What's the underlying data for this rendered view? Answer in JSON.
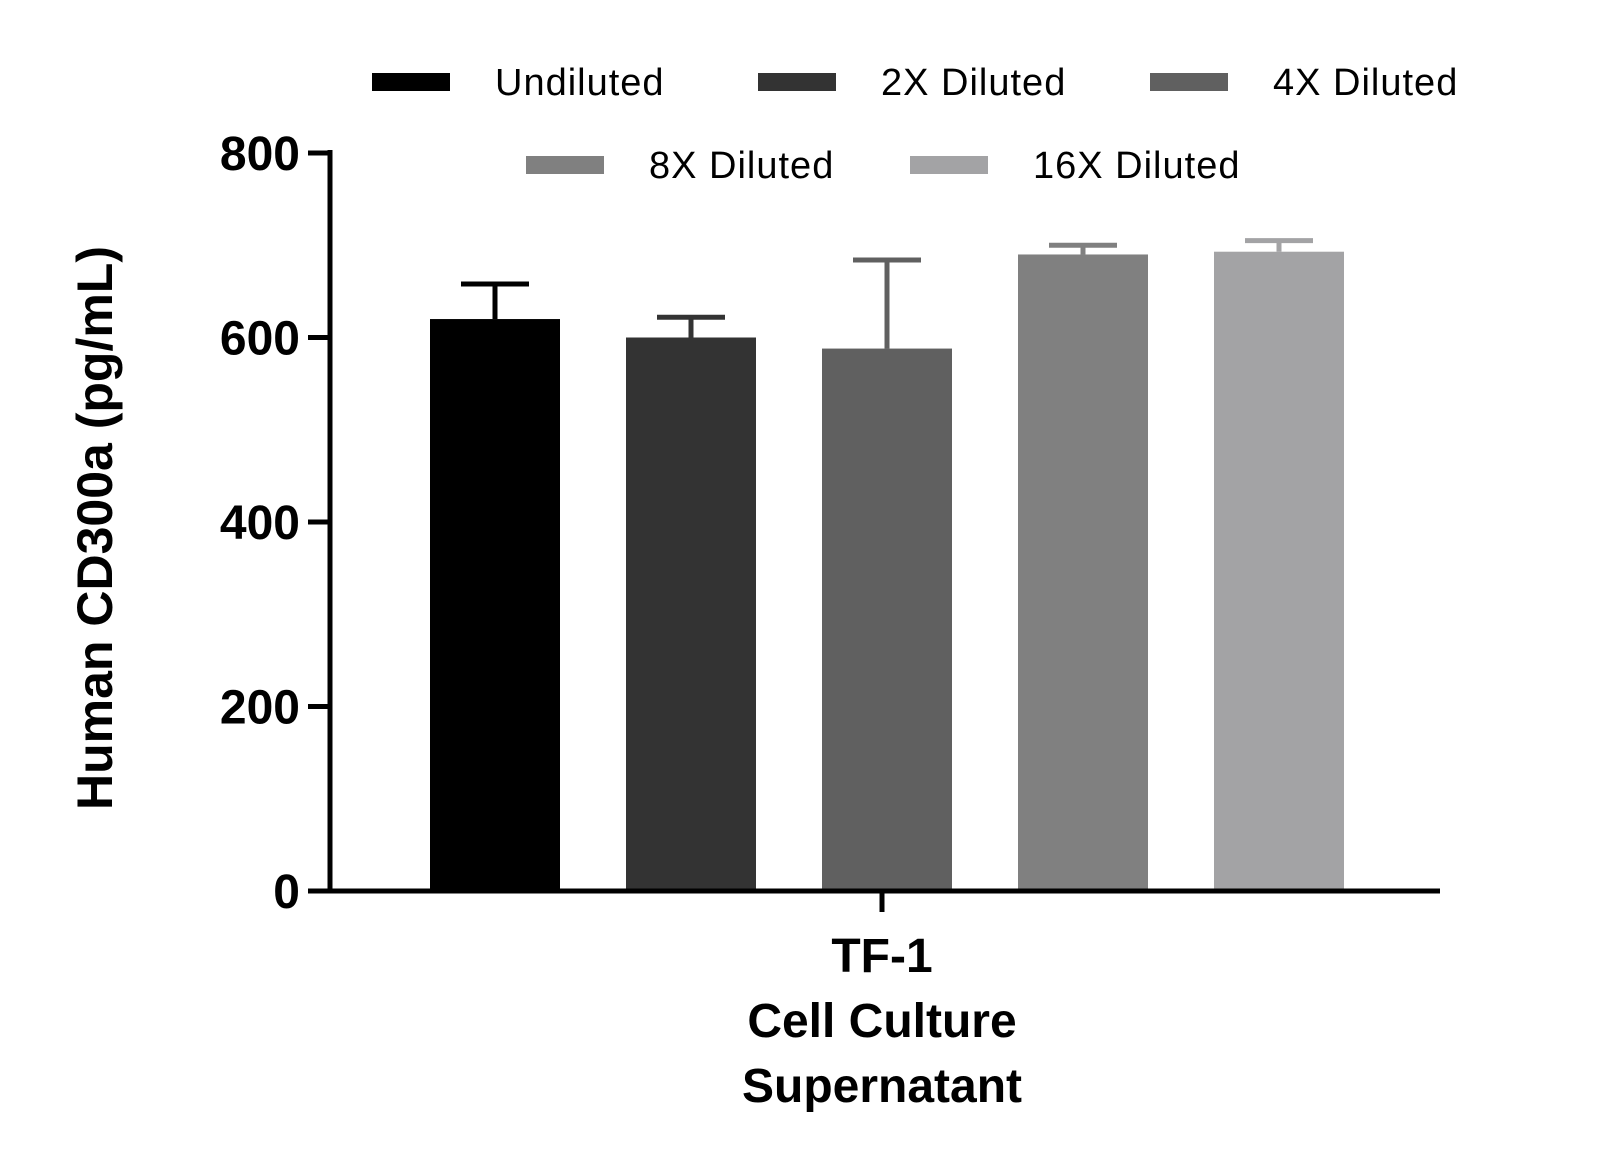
{
  "chart_data": {
    "type": "bar",
    "title": "",
    "ylabel": "Human CD300a (pg/mL)",
    "xlabel": "",
    "ylim": [
      0,
      800
    ],
    "yticks": [
      0,
      200,
      400,
      600,
      800
    ],
    "grid": false,
    "legend_position": "top",
    "categories": [
      "TF-1",
      "Cell Culture",
      "Supernatant"
    ],
    "series": [
      {
        "name": "Undiluted",
        "value": 620,
        "error": 38,
        "color": "#000000"
      },
      {
        "name": "2X Diluted",
        "value": 600,
        "error": 22,
        "color": "#333333"
      },
      {
        "name": "4X Diluted",
        "value": 588,
        "error": 96,
        "color": "#606060"
      },
      {
        "name": "8X Diluted",
        "value": 690,
        "error": 10,
        "color": "#808080"
      },
      {
        "name": "16X Diluted",
        "value": 693,
        "error": 12,
        "color": "#a3a3a5"
      }
    ]
  }
}
